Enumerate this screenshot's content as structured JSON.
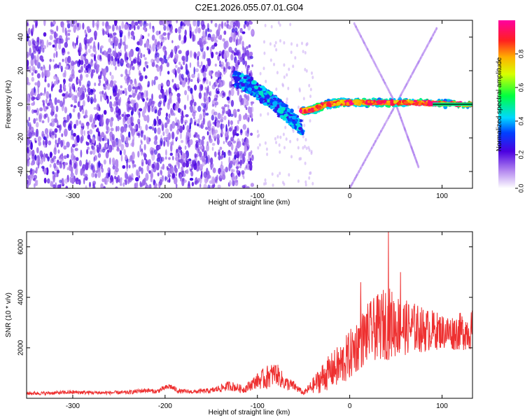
{
  "title": "C2E1.2026.055.07.01.G04",
  "chart_data": [
    {
      "type": "heatmap",
      "name": "spectrogram",
      "xlabel": "Height of straight line (km)",
      "ylabel": "Frequency (Hz)",
      "xlim": [
        -350,
        133
      ],
      "ylim": [
        -50,
        50
      ],
      "xticks": [
        -300,
        -200,
        -100,
        0,
        100
      ],
      "yticks": [
        -40,
        -20,
        0,
        20,
        40
      ],
      "colorbar": {
        "label": "Normalized spectral amplitude",
        "range": [
          0,
          1
        ],
        "ticks": [
          0.0,
          0.2,
          0.4,
          0.6,
          0.8
        ]
      },
      "features": [
        {
          "name": "noise-band",
          "x_range": [
            -350,
            -105
          ],
          "freq_range": [
            -50,
            50
          ],
          "amplitude": 0.15
        },
        {
          "name": "signal-track-descending",
          "points": [
            [
              -125,
              15
            ],
            [
              -110,
              12
            ],
            [
              -95,
              6
            ],
            [
              -80,
              0
            ],
            [
              -65,
              -8
            ],
            [
              -52,
              -13
            ]
          ],
          "amplitude": 0.35
        },
        {
          "name": "signal-track-locked",
          "points": [
            [
              -52,
              -4
            ],
            [
              -40,
              -3
            ],
            [
              -25,
              0
            ],
            [
              -10,
              1
            ],
            [
              0,
              1
            ],
            [
              30,
              1
            ],
            [
              60,
              1
            ],
            [
              90,
              0.5
            ],
            [
              133,
              0
            ]
          ],
          "amplitude": 0.85
        },
        {
          "name": "ghost-line-a",
          "points": [
            [
              5,
              48
            ],
            [
              50,
              0
            ],
            [
              75,
              -38
            ]
          ],
          "amplitude": 0.06
        },
        {
          "name": "ghost-line-b",
          "points": [
            [
              0,
              -50
            ],
            [
              50,
              0
            ],
            [
              95,
              46
            ]
          ],
          "amplitude": 0.06
        }
      ]
    },
    {
      "type": "line",
      "name": "snr",
      "xlabel": "Height of straight line (km)",
      "ylabel": "SNR (10 * v/v)",
      "xlim": [
        -350,
        133
      ],
      "ylim": [
        0,
        6600
      ],
      "xticks": [
        -300,
        -200,
        -100,
        0,
        100
      ],
      "yticks": [
        2000,
        4000,
        6000
      ],
      "series": [
        {
          "name": "SNR",
          "color": "#ee3030",
          "x": [
            -350,
            -330,
            -300,
            -270,
            -240,
            -220,
            -210,
            -195,
            -185,
            -170,
            -150,
            -130,
            -115,
            -100,
            -90,
            -80,
            -70,
            -60,
            -50,
            -40,
            -30,
            -20,
            -10,
            0,
            10,
            20,
            30,
            40,
            50,
            60,
            70,
            80,
            90,
            100,
            110,
            120,
            133
          ],
          "mean": [
            200,
            200,
            240,
            220,
            230,
            320,
            260,
            480,
            280,
            260,
            300,
            500,
            350,
            700,
            800,
            1000,
            600,
            480,
            200,
            500,
            800,
            1100,
            1300,
            1700,
            2200,
            2600,
            2800,
            3000,
            2900,
            2800,
            2800,
            2700,
            2700,
            2650,
            2600,
            2650,
            2700
          ],
          "noise": [
            70,
            70,
            80,
            70,
            80,
            100,
            80,
            120,
            90,
            80,
            110,
            200,
            150,
            300,
            500,
            450,
            300,
            200,
            80,
            300,
            600,
            700,
            900,
            1000,
            1100,
            1200,
            1300,
            1500,
            1300,
            1100,
            1000,
            900,
            800,
            700,
            700,
            750,
            800
          ],
          "peaks": [
            [
              -80,
              1300
            ],
            [
              12,
              4600
            ],
            [
              42,
              6600
            ],
            [
              55,
              5000
            ],
            [
              -88,
              1050
            ]
          ]
        }
      ]
    }
  ]
}
